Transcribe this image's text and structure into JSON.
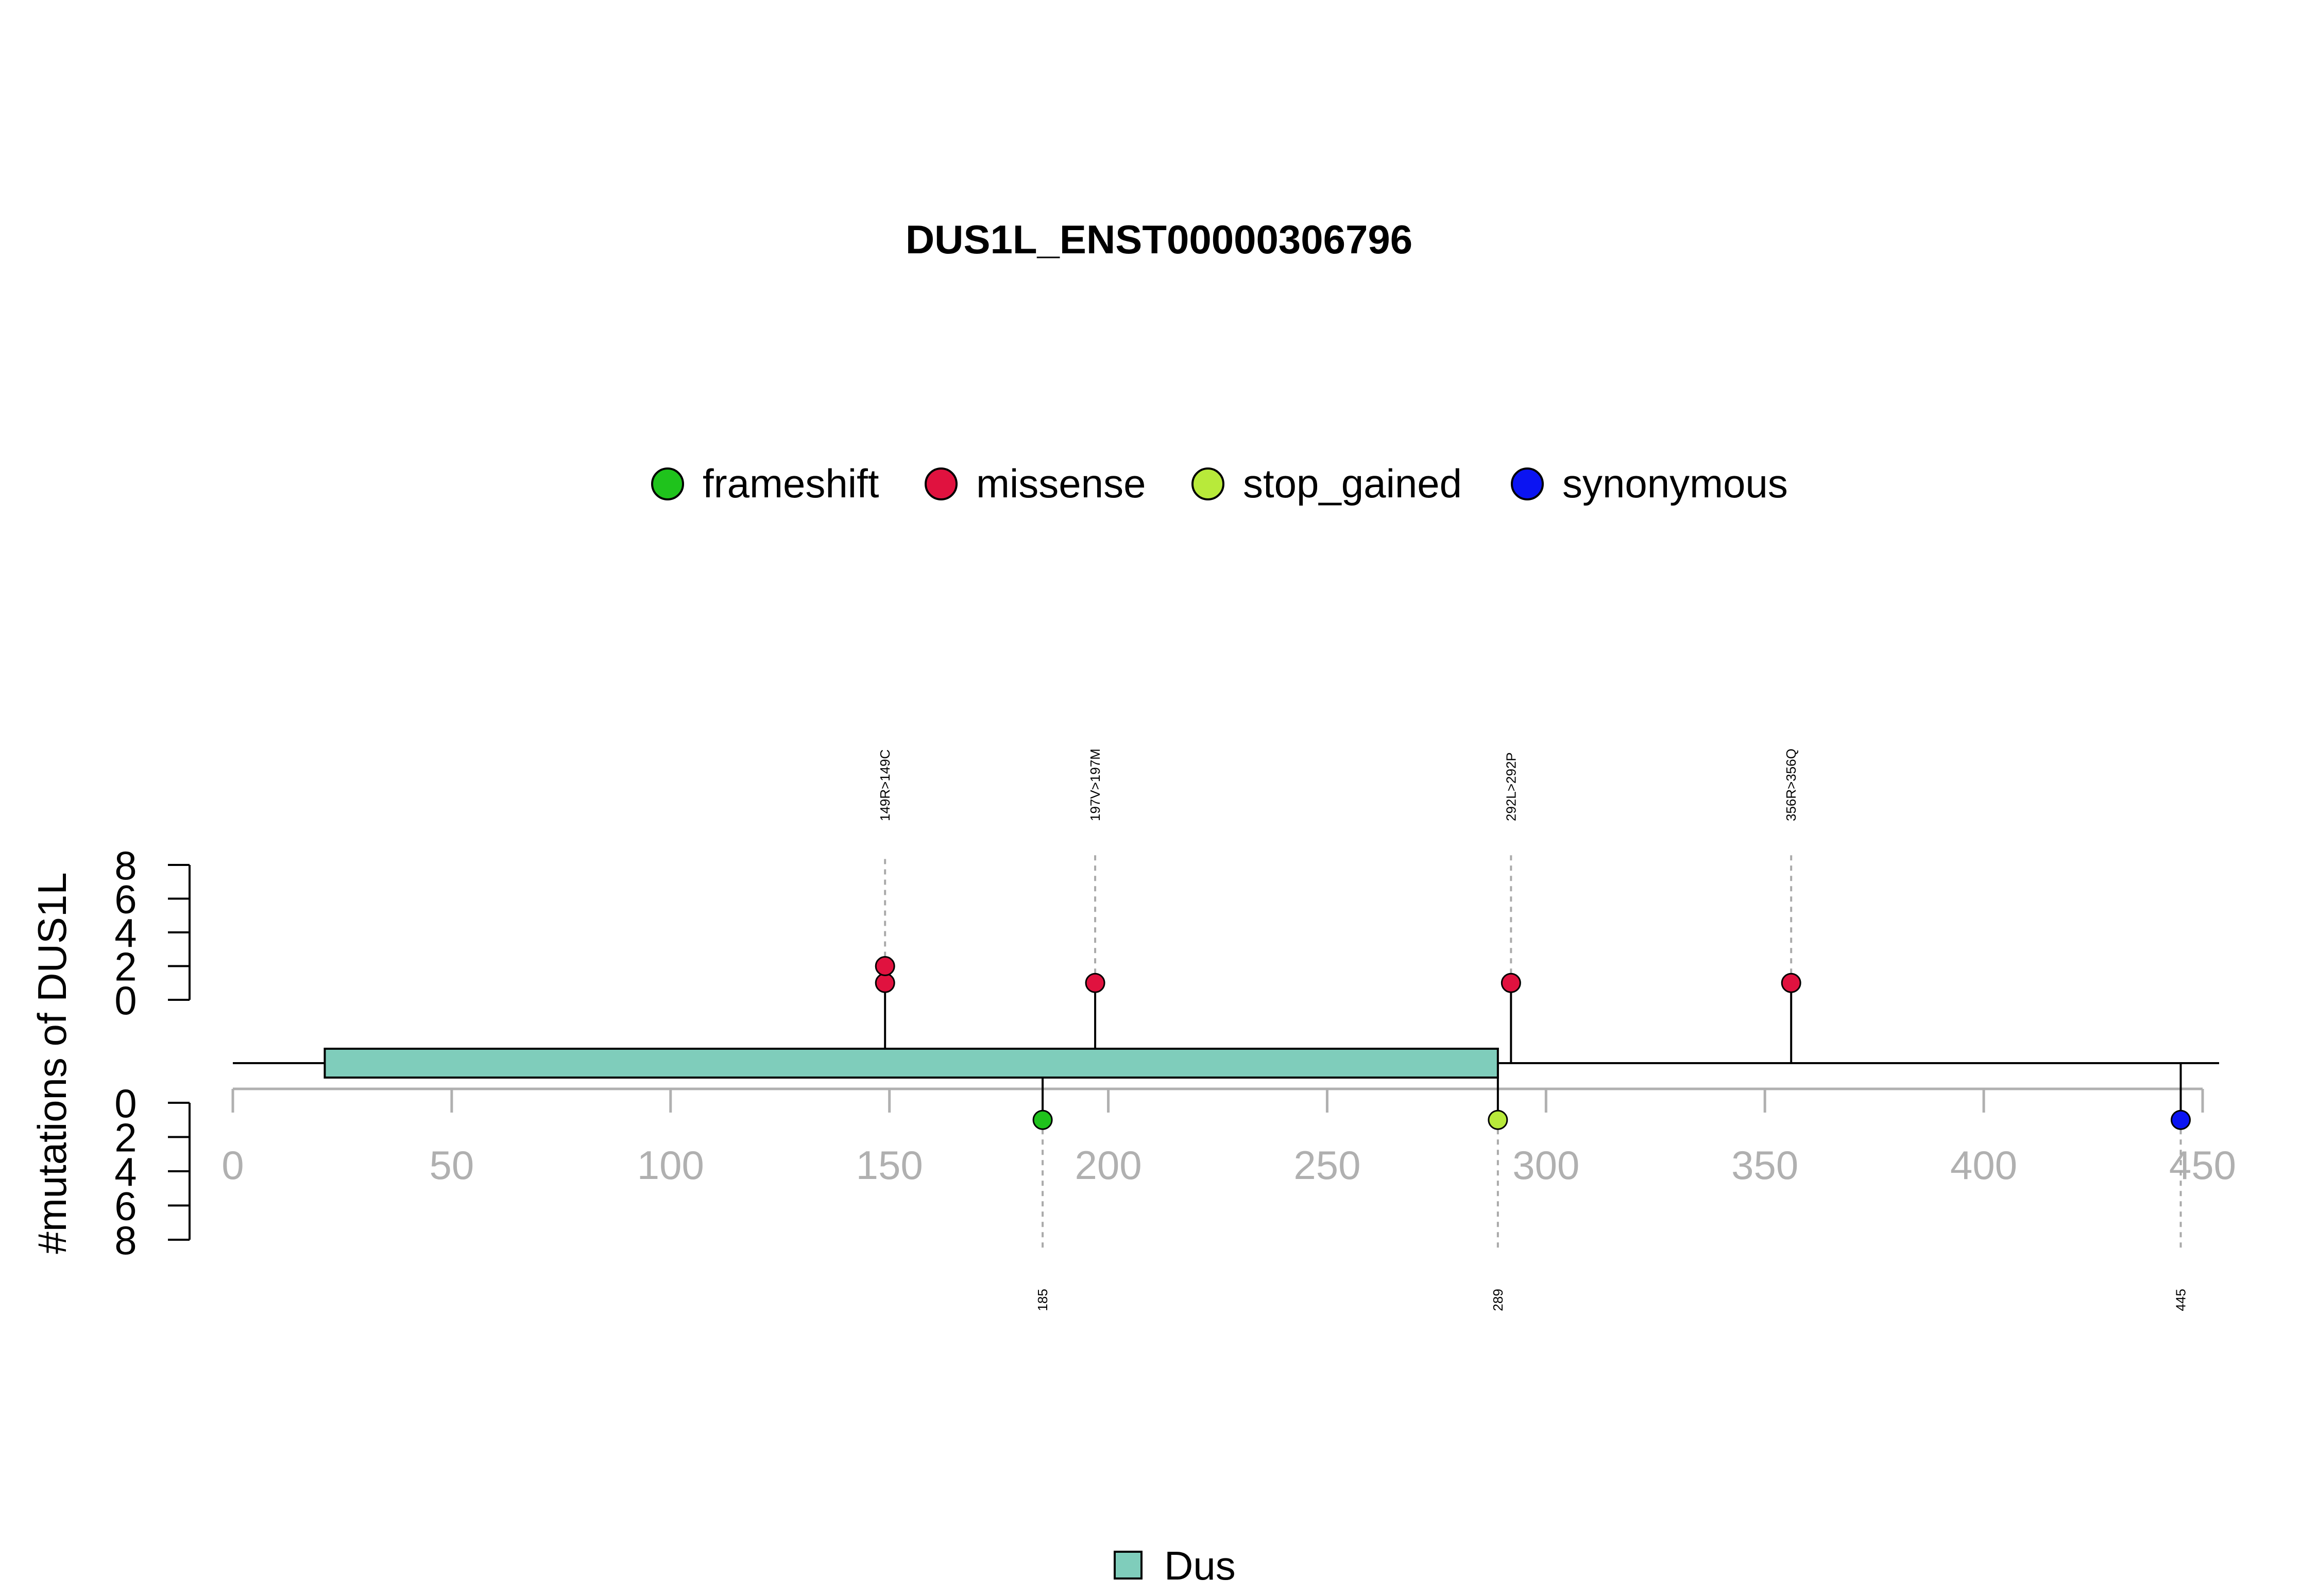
{
  "chart_data": {
    "type": "lollipop",
    "title": "DUS1L_ENST00000306796",
    "ylabel": "#mutations of DUS1L",
    "protein_length": 450,
    "xlim": [
      0,
      450
    ],
    "x_ticks": [
      "0",
      "50",
      "100",
      "150",
      "200",
      "250",
      "300",
      "350",
      "400",
      "450"
    ],
    "y_ticks_top": [
      "0",
      "2",
      "4",
      "6",
      "8"
    ],
    "y_ticks_bottom": [
      "0",
      "2",
      "4",
      "6",
      "8"
    ],
    "ylim": [
      0,
      8
    ],
    "legend": [
      {
        "name": "frameshift",
        "color": "#1fc31c"
      },
      {
        "name": "missense",
        "color": "#e0123f"
      },
      {
        "name": "stop_gained",
        "color": "#b8ea3a"
      },
      {
        "name": "synonymous",
        "color": "#0b14f2"
      }
    ],
    "domains": [
      {
        "name": "Dus",
        "start": 21,
        "end": 289,
        "color": "#7fcdbb"
      }
    ],
    "domain_legend": [
      {
        "name": "Dus",
        "color": "#7fcdbb"
      }
    ],
    "mutations_top": [
      {
        "position": 149,
        "count": 2,
        "type": "missense",
        "label": "149R>149C"
      },
      {
        "position": 197,
        "count": 1,
        "type": "missense",
        "label": "197V>197M"
      },
      {
        "position": 292,
        "count": 1,
        "type": "missense",
        "label": "292L>292P"
      },
      {
        "position": 356,
        "count": 1,
        "type": "missense",
        "label": "356R>356Q"
      }
    ],
    "mutations_bottom": [
      {
        "position": 185,
        "count": 1,
        "type": "frameshift",
        "label": "185"
      },
      {
        "position": 289,
        "count": 1,
        "type": "stop_gained",
        "label": "289"
      },
      {
        "position": 445,
        "count": 1,
        "type": "synonymous",
        "label": "445"
      }
    ]
  }
}
